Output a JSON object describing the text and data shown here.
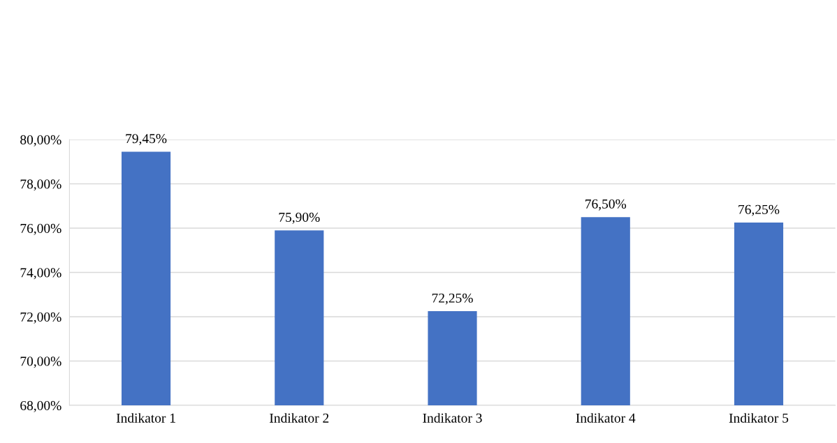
{
  "chart_data": {
    "type": "bar",
    "categories": [
      "Indikator 1",
      "Indikator 2",
      "Indikator 3",
      "Indikator 4",
      "Indikator 5"
    ],
    "values": [
      79.45,
      75.9,
      72.25,
      76.5,
      76.25
    ],
    "value_labels": [
      "79,45%",
      "75,90%",
      "72,25%",
      "76,50%",
      "76,25%"
    ],
    "color": "#4472c4",
    "ylim": [
      68,
      80
    ],
    "yticks": [
      {
        "value": 68,
        "label": "68,00%"
      },
      {
        "value": 70,
        "label": "70,00%"
      },
      {
        "value": 72,
        "label": "72,00%"
      },
      {
        "value": 74,
        "label": "74,00%"
      },
      {
        "value": 76,
        "label": "76,00%"
      },
      {
        "value": 78,
        "label": "78,00%"
      },
      {
        "value": 80,
        "label": "80,00%"
      }
    ],
    "grid": "y"
  }
}
